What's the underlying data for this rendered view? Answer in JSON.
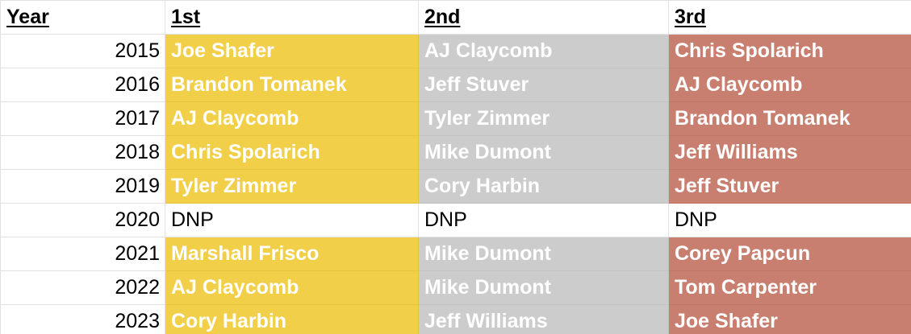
{
  "headers": {
    "year": "Year",
    "first": "1st",
    "second": "2nd",
    "third": "3rd"
  },
  "colors": {
    "first": "#f1cf48",
    "second": "#cccccc",
    "third": "#c97f70"
  },
  "rows": [
    {
      "year": "2015",
      "first": "Joe Shafer",
      "second": "AJ Claycomb",
      "third": "Chris Spolarich",
      "played": true
    },
    {
      "year": "2016",
      "first": "Brandon Tomanek",
      "second": "Jeff Stuver",
      "third": "AJ Claycomb",
      "played": true
    },
    {
      "year": "2017",
      "first": "AJ Claycomb",
      "second": "Tyler Zimmer",
      "third": "Brandon Tomanek",
      "played": true
    },
    {
      "year": "2018",
      "first": "Chris Spolarich",
      "second": "Mike Dumont",
      "third": "Jeff Williams",
      "played": true
    },
    {
      "year": "2019",
      "first": "Tyler Zimmer",
      "second": "Cory Harbin",
      "third": "Jeff Stuver",
      "played": true
    },
    {
      "year": "2020",
      "first": "DNP",
      "second": "DNP",
      "third": "DNP",
      "played": false
    },
    {
      "year": "2021",
      "first": "Marshall Frisco",
      "second": "Mike Dumont",
      "third": "Corey Papcun",
      "played": true
    },
    {
      "year": "2022",
      "first": "AJ Claycomb",
      "second": "Mike Dumont",
      "third": "Tom Carpenter",
      "played": true
    },
    {
      "year": "2023",
      "first": "Cory Harbin",
      "second": "Jeff Williams",
      "third": "Joe Shafer",
      "played": true
    }
  ]
}
